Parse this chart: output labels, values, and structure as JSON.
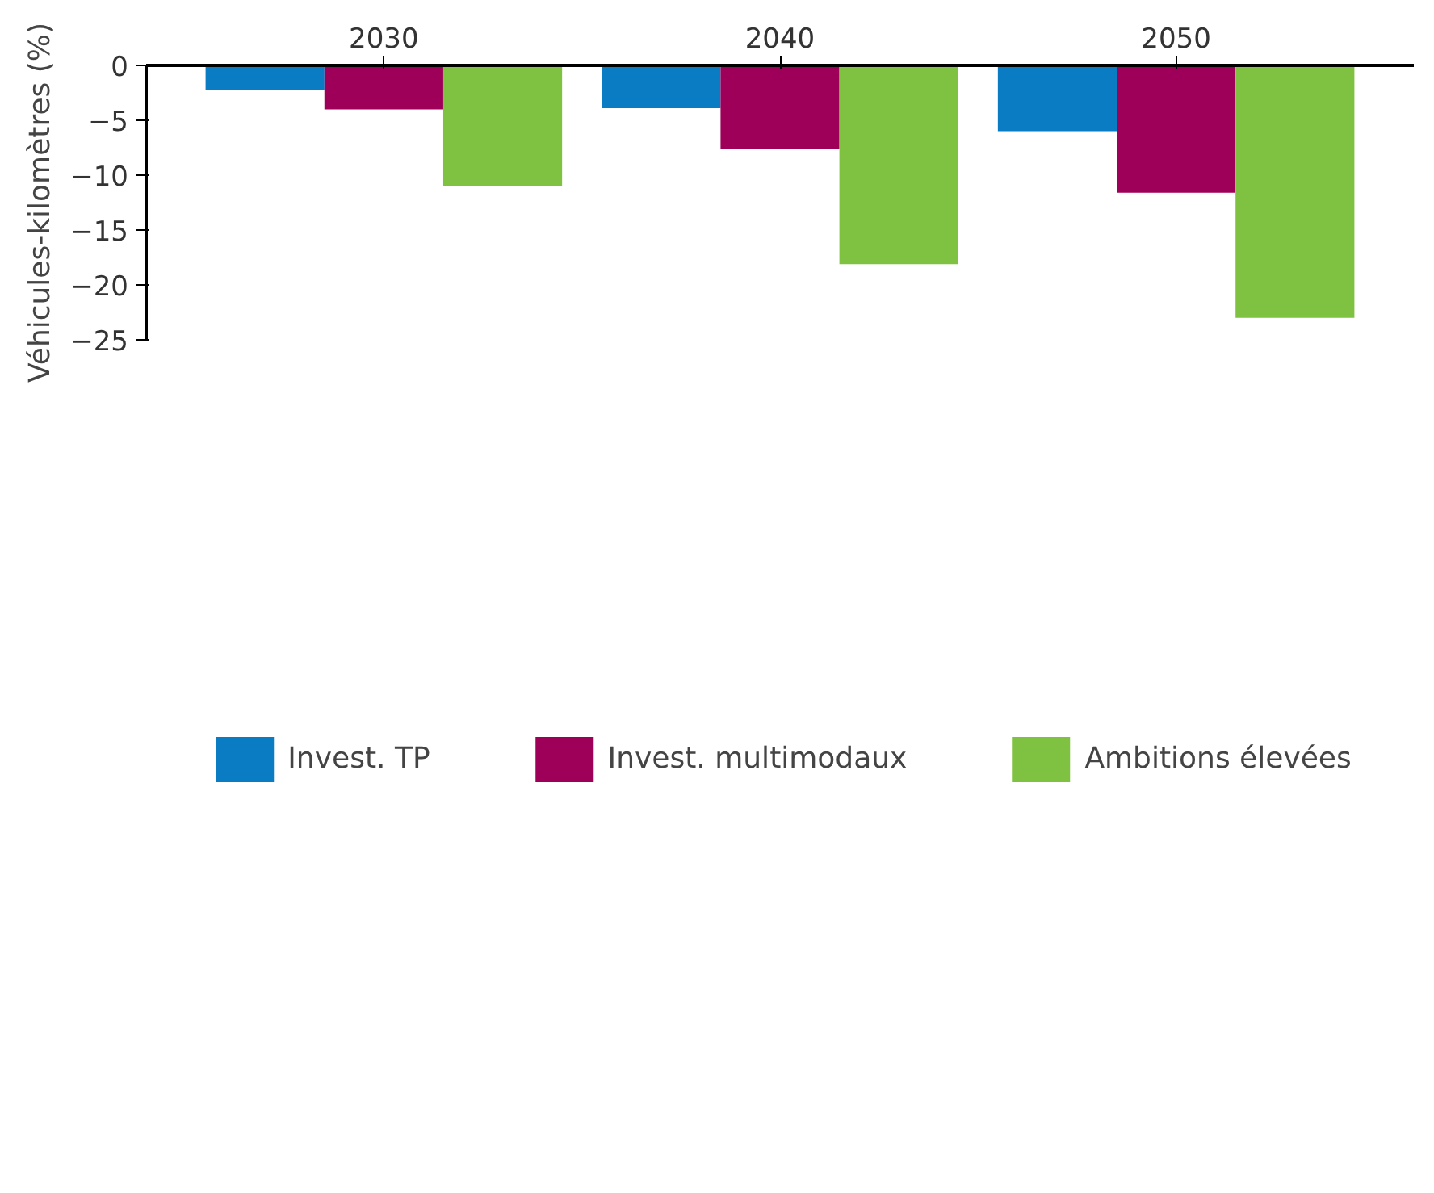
{
  "chart_data": {
    "type": "bar",
    "ylabel": "Véhicules-kilomètres (%)",
    "categories": [
      "2030",
      "2040",
      "2050"
    ],
    "series": [
      {
        "name": "Invest. TP",
        "color": "#0a7cc4",
        "values": [
          -2.2,
          -3.9,
          -6.0
        ]
      },
      {
        "name": "Invest. multimodaux",
        "color": "#9e0059",
        "values": [
          -4.0,
          -7.6,
          -11.6
        ]
      },
      {
        "name": "Ambitions élevées",
        "color": "#7fc241",
        "values": [
          -11.0,
          -18.1,
          -23.0
        ]
      }
    ],
    "ylim": [
      -25,
      0
    ],
    "yticks": [
      0,
      -5,
      -10,
      -15,
      -20,
      -25
    ],
    "grid": false,
    "legend": "bottom"
  }
}
